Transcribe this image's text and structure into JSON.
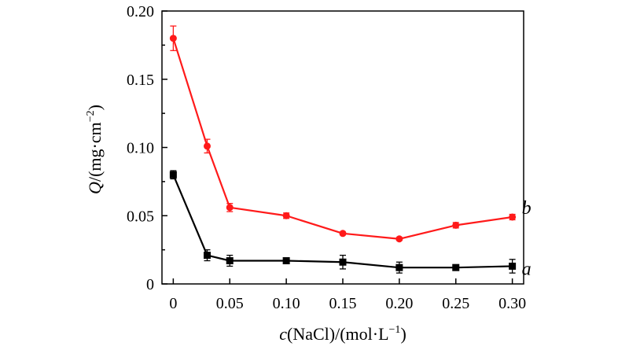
{
  "chart_data": {
    "type": "line",
    "title": "",
    "x": [
      "0",
      "0.03",
      "0.05",
      "0.10",
      "0.15",
      "0.20",
      "0.25",
      "0.30"
    ],
    "x_values": [
      0,
      0.03,
      0.05,
      0.1,
      0.15,
      0.2,
      0.25,
      0.3
    ],
    "xticks": [
      0,
      0.05,
      0.1,
      0.15,
      0.2,
      0.25,
      0.3
    ],
    "xtick_labels": [
      "0",
      "0.05",
      "0.10",
      "0.15",
      "0.20",
      "0.25",
      "0.30"
    ],
    "yticks": [
      0,
      0.05,
      0.1,
      0.15,
      0.2
    ],
    "ytick_labels": [
      "0",
      "0.05",
      "0.10",
      "0.15",
      "0.20"
    ],
    "xlim": [
      -0.01,
      0.31
    ],
    "ylim": [
      0,
      0.2
    ],
    "xlabel_parts": {
      "italic": "c",
      "rest": "(NaCl)/(mol·L",
      "sup": "−1",
      "close": ")"
    },
    "ylabel_parts": {
      "italic": "Q",
      "rest": "/(mg·cm",
      "sup": "−2",
      "close": ")"
    },
    "series": [
      {
        "name": "a",
        "label": "a",
        "color": "#000000",
        "marker": "square",
        "values": [
          0.08,
          0.021,
          0.017,
          0.017,
          0.016,
          0.012,
          0.012,
          0.013
        ],
        "errors": [
          0.003,
          0.004,
          0.004,
          0.002,
          0.005,
          0.004,
          0.002,
          0.005
        ]
      },
      {
        "name": "b",
        "label": "b",
        "color": "#ff1a1a",
        "marker": "circle",
        "values": [
          0.18,
          0.101,
          0.056,
          0.05,
          0.037,
          0.033,
          0.043,
          0.049
        ],
        "errors": [
          0.009,
          0.005,
          0.003,
          0.002,
          0.001,
          0.001,
          0.002,
          0.002
        ]
      }
    ]
  }
}
